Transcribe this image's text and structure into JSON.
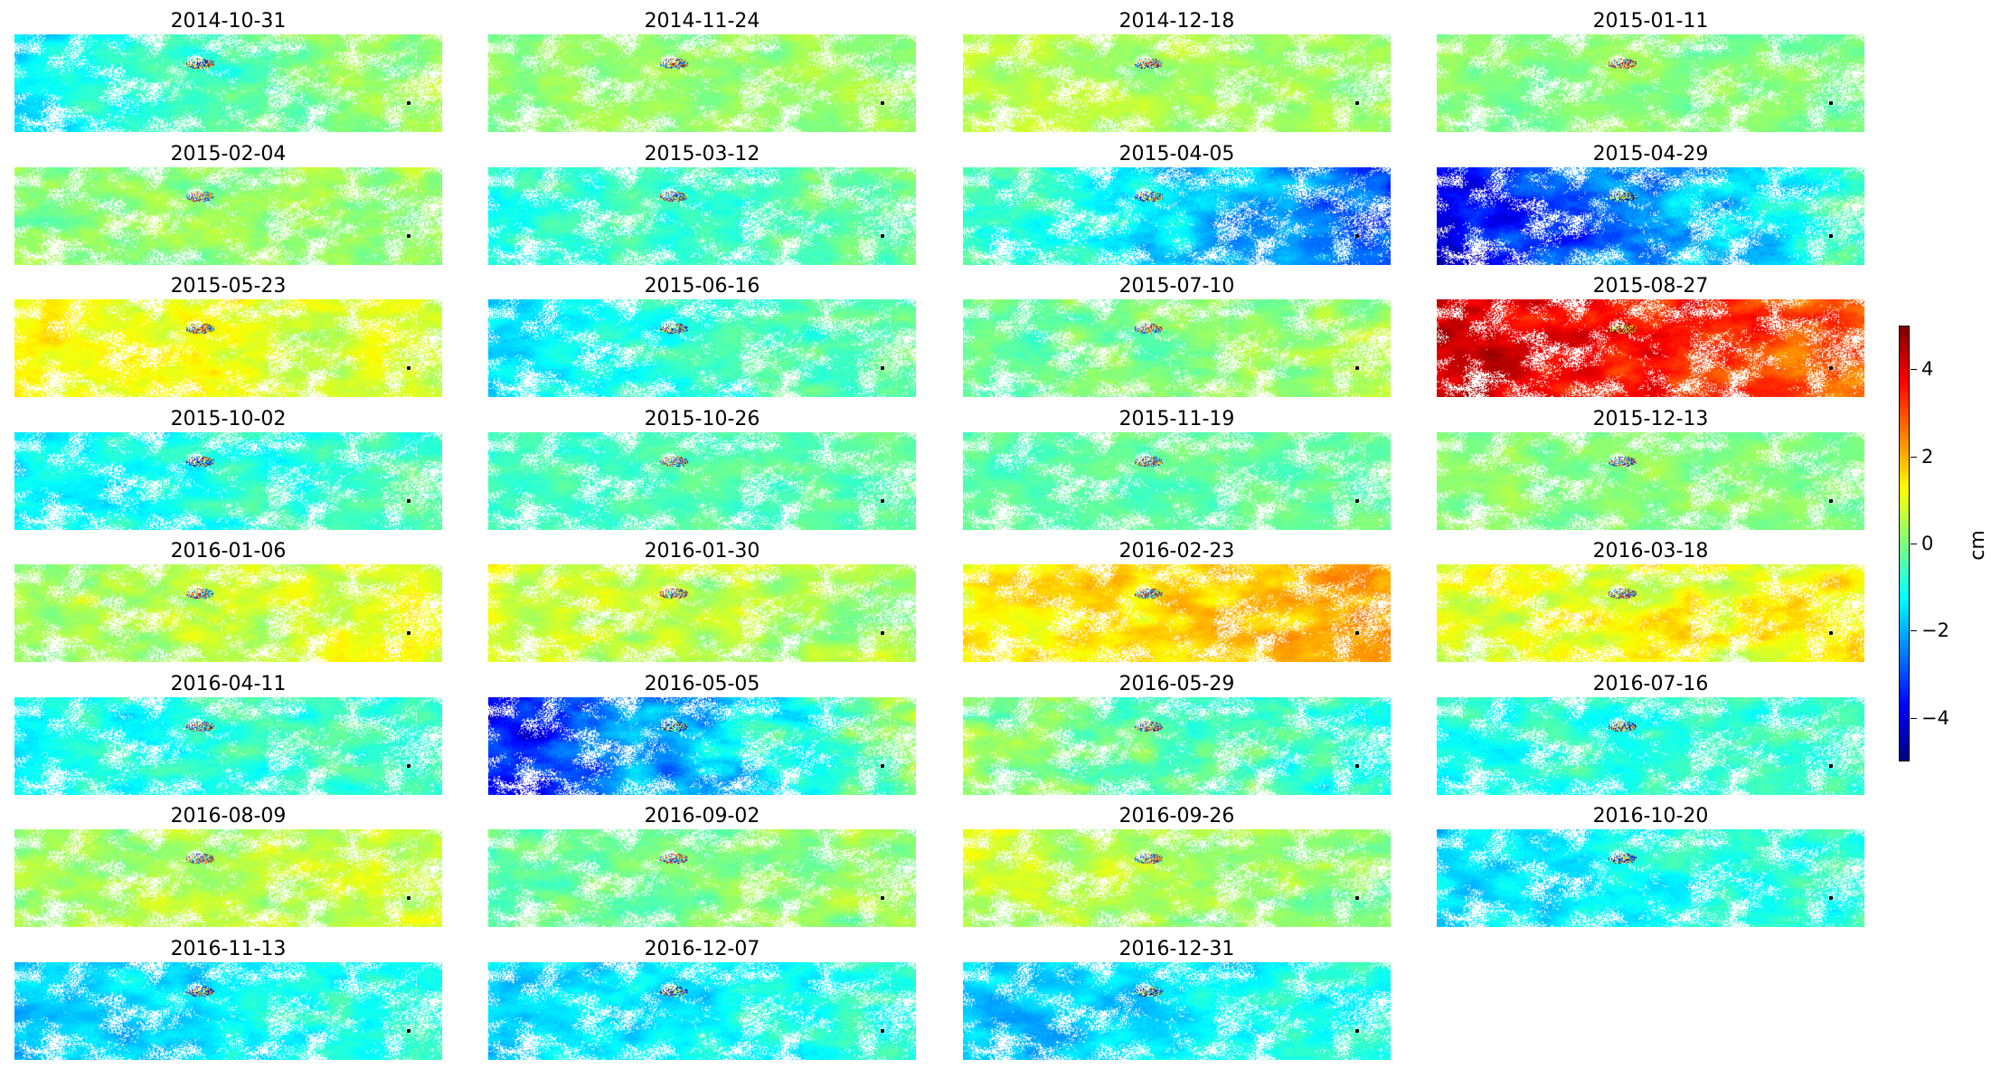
{
  "chart_data": {
    "type": "heatmap",
    "description_of_values": "",
    "colormap": "jet",
    "color_range": [
      -5,
      5
    ],
    "colorbar": {
      "label": "cm",
      "ticks": [
        4,
        2,
        0,
        -2,
        -4
      ],
      "tick_labels": [
        "4",
        "2",
        "0",
        "−2",
        "−4"
      ]
    },
    "grid": false,
    "panels": [
      {
        "title": "2014-10-31",
        "mean": -0.6,
        "west": -1.4,
        "east": 0.5,
        "spread": 0.4
      },
      {
        "title": "2014-11-24",
        "mean": 0.2,
        "west": 0.1,
        "east": 0.3,
        "spread": 0.3
      },
      {
        "title": "2014-12-18",
        "mean": 0.5,
        "west": 0.6,
        "east": 0.3,
        "spread": 0.3
      },
      {
        "title": "2015-01-11",
        "mean": 0.1,
        "west": 0.2,
        "east": 0.0,
        "spread": 0.3
      },
      {
        "title": "2015-02-04",
        "mean": 0.2,
        "west": 0.1,
        "east": 0.4,
        "spread": 0.4
      },
      {
        "title": "2015-03-12",
        "mean": -0.6,
        "west": -0.9,
        "east": -0.2,
        "spread": 0.4
      },
      {
        "title": "2015-04-05",
        "mean": -1.2,
        "west": -0.4,
        "east": -2.8,
        "spread": 0.5
      },
      {
        "title": "2015-04-29",
        "mean": -2.5,
        "west": -4.0,
        "east": -0.5,
        "spread": 0.6
      },
      {
        "title": "2015-05-23",
        "mean": 1.0,
        "west": 1.4,
        "east": 0.8,
        "spread": 0.4
      },
      {
        "title": "2015-06-16",
        "mean": -0.8,
        "west": -1.4,
        "east": -0.2,
        "spread": 0.4
      },
      {
        "title": "2015-07-10",
        "mean": 0.1,
        "west": -0.3,
        "east": 0.5,
        "spread": 0.4
      },
      {
        "title": "2015-08-27",
        "mean": 3.8,
        "west": 4.4,
        "east": 2.8,
        "spread": 0.5
      },
      {
        "title": "2015-10-02",
        "mean": -0.9,
        "west": -1.3,
        "east": -0.5,
        "spread": 0.4
      },
      {
        "title": "2015-10-26",
        "mean": -0.5,
        "west": -0.6,
        "east": -0.3,
        "spread": 0.3
      },
      {
        "title": "2015-11-19",
        "mean": -0.3,
        "west": -0.4,
        "east": -0.2,
        "spread": 0.3
      },
      {
        "title": "2015-12-13",
        "mean": 0.1,
        "west": 0.1,
        "east": 0.1,
        "spread": 0.3
      },
      {
        "title": "2016-01-06",
        "mean": 0.6,
        "west": 0.3,
        "east": 1.2,
        "spread": 0.4
      },
      {
        "title": "2016-01-30",
        "mean": 0.7,
        "west": 0.9,
        "east": 0.4,
        "spread": 0.4
      },
      {
        "title": "2016-02-23",
        "mean": 1.7,
        "west": 1.3,
        "east": 2.2,
        "spread": 0.4
      },
      {
        "title": "2016-03-18",
        "mean": 1.2,
        "west": 1.0,
        "east": 1.3,
        "spread": 0.5
      },
      {
        "title": "2016-04-11",
        "mean": -0.9,
        "west": -1.1,
        "east": -0.6,
        "spread": 0.4
      },
      {
        "title": "2016-05-05",
        "mean": -2.0,
        "west": -3.6,
        "east": 0.2,
        "spread": 0.6
      },
      {
        "title": "2016-05-29",
        "mean": -0.2,
        "west": 0.2,
        "east": -0.8,
        "spread": 0.5
      },
      {
        "title": "2016-07-16",
        "mean": -0.8,
        "west": -1.0,
        "east": -0.6,
        "spread": 0.4
      },
      {
        "title": "2016-08-09",
        "mean": 0.5,
        "west": 0.3,
        "east": 0.9,
        "spread": 0.4
      },
      {
        "title": "2016-09-02",
        "mean": -0.1,
        "west": -0.3,
        "east": 0.3,
        "spread": 0.4
      },
      {
        "title": "2016-09-26",
        "mean": 0.4,
        "west": 0.8,
        "east": 0.0,
        "spread": 0.4
      },
      {
        "title": "2016-10-20",
        "mean": -1.2,
        "west": -1.6,
        "east": -0.7,
        "spread": 0.4
      },
      {
        "title": "2016-11-13",
        "mean": -1.3,
        "west": -1.8,
        "east": -0.8,
        "spread": 0.4
      },
      {
        "title": "2016-12-07",
        "mean": -1.3,
        "west": -1.7,
        "east": -0.8,
        "spread": 0.4
      },
      {
        "title": "2016-12-31",
        "mean": -1.4,
        "west": -1.8,
        "east": -0.9,
        "spread": 0.4
      }
    ]
  }
}
